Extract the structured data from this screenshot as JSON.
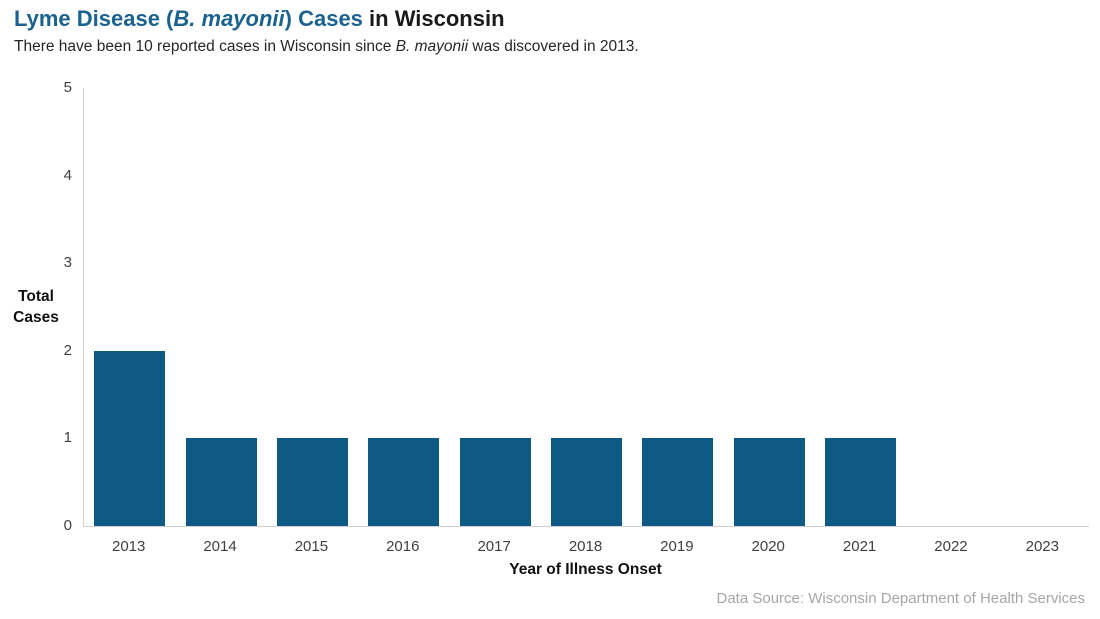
{
  "title": {
    "accent_before_italic": "Lyme Disease (",
    "accent_italic": "B. mayonii",
    "accent_after_italic": ") Cases",
    "rest": " in Wisconsin"
  },
  "subtitle": {
    "before_italic": "There have been 10 reported cases in Wisconsin since ",
    "italic": "B. mayonii",
    "after_italic": " was discovered in 2013."
  },
  "y_axis": {
    "title_line1": "Total",
    "title_line2": "Cases"
  },
  "footer": {
    "data_source": "Data Source: Wisconsin Department of Health Services"
  },
  "colors": {
    "bar": "#0e5a85",
    "title_accent": "#1b628f",
    "axis_line": "#d0d0d0",
    "tick_label": "#404040",
    "source_text": "#a6a6a6"
  },
  "chart_data": {
    "type": "bar",
    "title": "Lyme Disease (B. mayonii) Cases in Wisconsin",
    "subtitle": "There have been 10 reported cases in Wisconsin since B. mayonii was discovered in 2013.",
    "categories": [
      "2013",
      "2014",
      "2015",
      "2016",
      "2017",
      "2018",
      "2019",
      "2020",
      "2021",
      "2022",
      "2023"
    ],
    "values": [
      2,
      1,
      1,
      1,
      1,
      1,
      1,
      1,
      1,
      0,
      0
    ],
    "xlabel": "Year of Illness Onset",
    "ylabel": "Total Cases",
    "ylim": [
      0,
      5
    ],
    "yticks": [
      0,
      1,
      2,
      3,
      4,
      5
    ],
    "grid": false,
    "legend": "none"
  }
}
